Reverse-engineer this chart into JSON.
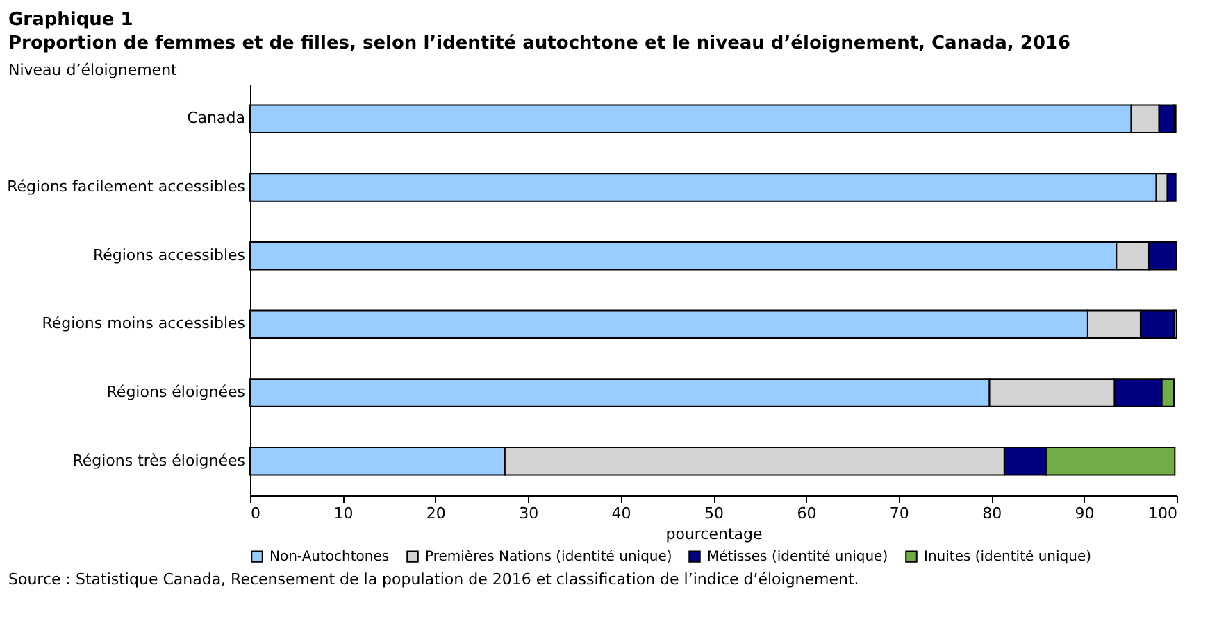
{
  "chart_data": {
    "type": "bar",
    "orientation": "horizontal",
    "stacked": true,
    "title": "Graphique 1",
    "subtitle": "Proportion de femmes et de filles, selon l’identité autochtone et le niveau d’éloignement, Canada, 2016",
    "ylabel": "Niveau d’éloignement",
    "xlabel": "pourcentage",
    "categories": [
      "Canada",
      "Régions facilement accessibles",
      "Régions accessibles",
      "Régions moins accessibles",
      "Régions éloignées",
      "Régions très éloignées"
    ],
    "series": [
      {
        "name": "Non-Autochtones",
        "color": "#99ccff",
        "values": [
          95.1,
          97.8,
          93.5,
          90.4,
          79.8,
          27.5
        ]
      },
      {
        "name": "Premières Nations (identité unique)",
        "color": "#d3d3d3",
        "values": [
          3.0,
          1.2,
          3.5,
          5.7,
          13.5,
          53.9
        ]
      },
      {
        "name": "Métisses (identité unique)",
        "color": "#000080",
        "values": [
          1.6,
          0.9,
          3.0,
          3.6,
          5.1,
          4.5
        ]
      },
      {
        "name": "Inuites (identité unique)",
        "color": "#70ad47",
        "values": [
          0.2,
          null,
          null,
          0.3,
          1.3,
          13.9
        ]
      }
    ],
    "xlim": [
      0,
      100
    ],
    "xticks": [
      0,
      10,
      20,
      30,
      40,
      50,
      60,
      70,
      80,
      90,
      100
    ],
    "grid": false,
    "legend": "bottom",
    "annotations": [
      "Source : Statistique Canada, Recensement de la population de 2016 et classification de l’indice d’éloignement."
    ]
  }
}
